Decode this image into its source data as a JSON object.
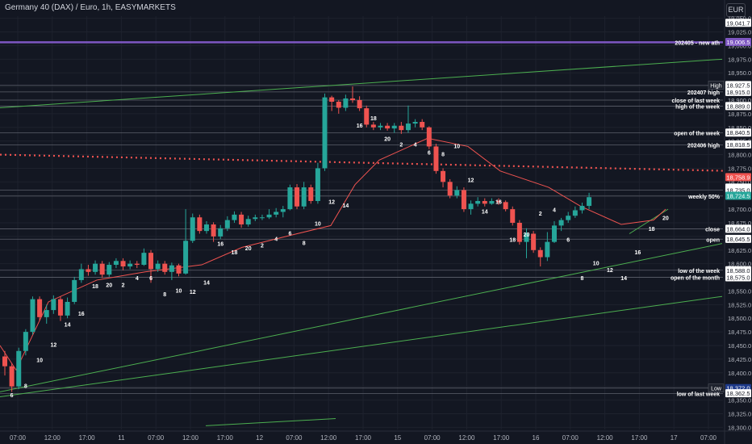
{
  "header": {
    "title": "Germany 40 (DAX) / Euro, 1h, EASYMARKETS",
    "currency": "EUR"
  },
  "colors": {
    "background": "#131722",
    "up": "#26a69a",
    "down": "#ef5350",
    "purple": "#7e57c2",
    "trend": "#4caf50",
    "ma": "#ef5350",
    "levelLine": "#5d606b"
  },
  "chart_data": {
    "type": "candlestick",
    "title": "Germany 40 (DAX) / Euro, 1h, EASYMARKETS",
    "ylim": [
      18287,
      19060
    ],
    "y_ticks": [
      18300,
      18325,
      18350,
      18375,
      18400,
      18425,
      18450,
      18475,
      18500,
      18525,
      18550,
      18575,
      18600,
      18625,
      18650,
      18675,
      18700,
      18725,
      18750,
      18775,
      18800,
      18825,
      18850,
      18875,
      18900,
      18925,
      18950,
      18975,
      19000,
      19025,
      19050
    ],
    "x_ticks": [
      "07:00",
      "12:00",
      "17:00",
      "11",
      "07:00",
      "12:00",
      "17:00",
      "12",
      "07:00",
      "12:00",
      "17:00",
      "15",
      "07:00",
      "12:00",
      "17:00",
      "16",
      "07:00",
      "12:00",
      "17:00",
      "17",
      "07:00"
    ],
    "candles": [
      [
        18430,
        18412,
        18440,
        18395
      ],
      [
        18412,
        18375,
        18418,
        18365
      ],
      [
        18375,
        18440,
        18446,
        18370
      ],
      [
        18440,
        18475,
        18480,
        18432
      ],
      [
        18475,
        18535,
        18540,
        18470
      ],
      [
        18535,
        18502,
        18540,
        18495
      ],
      [
        18502,
        18515,
        18525,
        18490
      ],
      [
        18515,
        18535,
        18542,
        18508
      ],
      [
        18535,
        18505,
        18540,
        18495
      ],
      [
        18505,
        18530,
        18538,
        18500
      ],
      [
        18530,
        18570,
        18576,
        18526
      ],
      [
        18570,
        18590,
        18600,
        18565
      ],
      [
        18590,
        18585,
        18598,
        18578
      ],
      [
        18585,
        18600,
        18606,
        18580
      ],
      [
        18600,
        18580,
        18605,
        18574
      ],
      [
        18580,
        18598,
        18603,
        18576
      ],
      [
        18598,
        18605,
        18610,
        18592
      ],
      [
        18605,
        18595,
        18610,
        18588
      ],
      [
        18595,
        18600,
        18606,
        18590
      ],
      [
        18600,
        18598,
        18605,
        18592
      ],
      [
        18598,
        18620,
        18628,
        18596
      ],
      [
        18620,
        18590,
        18625,
        18565
      ],
      [
        18590,
        18600,
        18606,
        18585
      ],
      [
        18600,
        18585,
        18605,
        18580
      ],
      [
        18585,
        18597,
        18602,
        18570
      ],
      [
        18597,
        18582,
        18600,
        18577
      ],
      [
        18582,
        18642,
        18700,
        18580
      ],
      [
        18642,
        18685,
        18692,
        18638
      ],
      [
        18685,
        18660,
        18690,
        18655
      ],
      [
        18660,
        18672,
        18678,
        18655
      ],
      [
        18672,
        18650,
        18676,
        18640
      ],
      [
        18650,
        18665,
        18671,
        18645
      ],
      [
        18665,
        18680,
        18687,
        18660
      ],
      [
        18680,
        18690,
        18696,
        18675
      ],
      [
        18690,
        18672,
        18695,
        18666
      ],
      [
        18672,
        18682,
        18688,
        18668
      ],
      [
        18682,
        18685,
        18690,
        18678
      ],
      [
        18685,
        18685,
        18690,
        18680
      ],
      [
        18685,
        18690,
        18700,
        18682
      ],
      [
        18690,
        18695,
        18702,
        18685
      ],
      [
        18695,
        18700,
        18706,
        18685
      ],
      [
        18700,
        18740,
        18745,
        18698
      ],
      [
        18740,
        18705,
        18746,
        18700
      ],
      [
        18705,
        18740,
        18750,
        18700
      ],
      [
        18740,
        18715,
        18745,
        18710
      ],
      [
        18715,
        18775,
        18785,
        18710
      ],
      [
        18775,
        18905,
        18912,
        18770
      ],
      [
        18905,
        18897,
        18908,
        18880
      ],
      [
        18897,
        18886,
        18900,
        18875
      ],
      [
        18886,
        18903,
        18910,
        18880
      ],
      [
        18903,
        18900,
        18925,
        18895
      ],
      [
        18900,
        18885,
        18907,
        18880
      ],
      [
        18885,
        18855,
        18890,
        18850
      ],
      [
        18855,
        18850,
        18860,
        18845
      ],
      [
        18850,
        18853,
        18858,
        18845
      ],
      [
        18853,
        18848,
        18858,
        18844
      ],
      [
        18848,
        18853,
        18858,
        18840
      ],
      [
        18853,
        18845,
        18860,
        18838
      ],
      [
        18845,
        18857,
        18890,
        18840
      ],
      [
        18857,
        18860,
        18865,
        18850
      ],
      [
        18860,
        18850,
        18865,
        18845
      ],
      [
        18850,
        18815,
        18852,
        18810
      ],
      [
        18815,
        18770,
        18820,
        18765
      ],
      [
        18770,
        18750,
        18775,
        18740
      ],
      [
        18750,
        18725,
        18755,
        18720
      ],
      [
        18725,
        18735,
        18742,
        18720
      ],
      [
        18735,
        18700,
        18740,
        18695
      ],
      [
        18700,
        18710,
        18716,
        18690
      ],
      [
        18710,
        18715,
        18722,
        18705
      ],
      [
        18715,
        18710,
        18720,
        18705
      ],
      [
        18710,
        18715,
        18720,
        18708
      ],
      [
        18715,
        18713,
        18720,
        18708
      ],
      [
        18713,
        18700,
        18716,
        18696
      ],
      [
        18700,
        18675,
        18705,
        18670
      ],
      [
        18675,
        18640,
        18680,
        18635
      ],
      [
        18640,
        18655,
        18665,
        18610
      ],
      [
        18655,
        18625,
        18660,
        18620
      ],
      [
        18625,
        18612,
        18630,
        18595
      ],
      [
        18612,
        18640,
        18658,
        18605
      ],
      [
        18640,
        18670,
        18678,
        18638
      ],
      [
        18670,
        18680,
        18684,
        18660
      ],
      [
        18680,
        18688,
        18695,
        18675
      ],
      [
        18688,
        18698,
        18705,
        18684
      ],
      [
        18698,
        18706,
        18712,
        18692
      ],
      [
        18706,
        18722,
        18730,
        18700
      ]
    ],
    "moving_average": [
      [
        0,
        18450
      ],
      [
        20,
        18405
      ],
      [
        60,
        18530
      ],
      [
        120,
        18570
      ],
      [
        180,
        18585
      ],
      [
        250,
        18598
      ],
      [
        300,
        18630
      ],
      [
        360,
        18652
      ],
      [
        410,
        18670
      ],
      [
        440,
        18745
      ],
      [
        470,
        18790
      ],
      [
        530,
        18830
      ],
      [
        580,
        18815
      ],
      [
        620,
        18770
      ],
      [
        680,
        18740
      ],
      [
        720,
        18705
      ],
      [
        770,
        18672
      ],
      [
        810,
        18680
      ],
      [
        825,
        18700
      ]
    ],
    "horizontal_levels": [
      {
        "price": 19006,
        "label": "202405 - new ath",
        "price_label": "19,006.5",
        "color": "#7e57c2",
        "width": 2.5
      },
      {
        "price": 18927,
        "label": "",
        "price_label": "18,927.5",
        "color": "#5d606b",
        "width": 0.8
      },
      {
        "price": 18915,
        "label": "202407 high",
        "price_label": "18,915.0",
        "color": "#5d606b",
        "width": 0.8
      },
      {
        "price": 18900,
        "label": "close of last week",
        "price_label": "",
        "color": "#5d606b",
        "width": 0.8
      },
      {
        "price": 18889,
        "label": "high of the week",
        "price_label": "18,889.0",
        "color": "#5d606b",
        "width": 0.8
      },
      {
        "price": 18840,
        "label": "open of the week",
        "price_label": "18,840.5",
        "color": "#5d606b",
        "width": 0.8
      },
      {
        "price": 18818,
        "label": "202406 high",
        "price_label": "18,818.5",
        "color": "#5d606b",
        "width": 0.8
      },
      {
        "price": 18735,
        "label": "",
        "price_label": "18,735.0",
        "color": "#5d606b",
        "width": 0.8
      },
      {
        "price": 18724,
        "label": "weekly 50%",
        "price_label": "",
        "color": "#5d606b",
        "width": 0.8
      },
      {
        "price": 18664,
        "label": "close",
        "price_label": "18,664.0",
        "color": "#5d606b",
        "width": 0.8
      },
      {
        "price": 18645,
        "label": "open",
        "price_label": "18,645.5",
        "color": "#5d606b",
        "width": 0.8
      },
      {
        "price": 18588,
        "label": "low of the week",
        "price_label": "18,588.0",
        "color": "#5d606b",
        "width": 0.8
      },
      {
        "price": 18575,
        "label": "open of the month",
        "price_label": "18,575.0",
        "color": "#5d606b",
        "width": 0.8
      },
      {
        "price": 18372,
        "label": "",
        "price_label": "18,372.0",
        "color": "#5d606b",
        "width": 0.8
      },
      {
        "price": 18362,
        "label": "low of last week",
        "price_label": "18,362.5",
        "color": "#5d606b",
        "width": 0.8
      }
    ],
    "dotted_level": {
      "price": 18800,
      "color": "#ef5350"
    },
    "price_badges": [
      {
        "text": "19,041.7",
        "price": 19041.7,
        "bg": "#ffffff",
        "fg": "#131722"
      },
      {
        "text": "19,006.5",
        "price": 19006.5,
        "bg": "#7e57c2",
        "fg": "#ffffff"
      },
      {
        "text": "18,927.5",
        "price": 18927.5,
        "bg": "#ffffff",
        "fg": "#131722",
        "tag": "High"
      },
      {
        "text": "18,915.0",
        "price": 18915.0,
        "bg": "#ffffff",
        "fg": "#131722"
      },
      {
        "text": "18,889.0",
        "price": 18889.0,
        "bg": "#ffffff",
        "fg": "#131722"
      },
      {
        "text": "18,840.5",
        "price": 18840.5,
        "bg": "#ffffff",
        "fg": "#131722"
      },
      {
        "text": "18,818.5",
        "price": 18818.5,
        "bg": "#ffffff",
        "fg": "#131722"
      },
      {
        "text": "18,739.5",
        "price": 18739.5,
        "bg": "#ffffff",
        "fg": "#131722"
      },
      {
        "text": "18,758.9",
        "price": 18758.9,
        "bg": "#ef5350",
        "fg": "#ffffff"
      },
      {
        "text": "18,735.0",
        "price": 18735.0,
        "bg": "#ffffff",
        "fg": "#131722"
      },
      {
        "text": "18,724.5",
        "price": 18724.5,
        "bg": "#26a69a",
        "fg": "#ffffff"
      },
      {
        "text": "18,664.0",
        "price": 18664.0,
        "bg": "#ffffff",
        "fg": "#131722"
      },
      {
        "text": "18,645.5",
        "price": 18645.5,
        "bg": "#ffffff",
        "fg": "#131722"
      },
      {
        "text": "18,588.0",
        "price": 18588.0,
        "bg": "#ffffff",
        "fg": "#131722"
      },
      {
        "text": "18,575.0",
        "price": 18575.0,
        "bg": "#ffffff",
        "fg": "#131722"
      },
      {
        "text": "18,372.0",
        "price": 18372.0,
        "bg": "#1e3a8a",
        "fg": "#ffffff",
        "tag": "Low"
      },
      {
        "text": "18,362.5",
        "price": 18362.5,
        "bg": "#ffffff",
        "fg": "#131722"
      }
    ],
    "trendlines": [
      {
        "from": [
          0,
          18886
        ],
        "to": [
          895,
          18975
        ]
      },
      {
        "from": [
          0,
          18365
        ],
        "to": [
          895,
          18637
        ]
      },
      {
        "from": [
          0,
          18356
        ],
        "to": [
          895,
          18540
        ]
      },
      {
        "from": [
          255,
          18303
        ],
        "to": [
          416,
          18316
        ]
      },
      {
        "from": [
          780,
          18655
        ],
        "to": [
          828,
          18700
        ]
      }
    ],
    "hour_labels": [
      {
        "text": "6",
        "candle": 1,
        "price": 18355
      },
      {
        "text": "8",
        "candle": 3,
        "price": 18372
      },
      {
        "text": "10",
        "candle": 5,
        "price": 18420
      },
      {
        "text": "12",
        "candle": 7,
        "price": 18448
      },
      {
        "text": "14",
        "candle": 9,
        "price": 18485
      },
      {
        "text": "16",
        "candle": 11,
        "price": 18505
      },
      {
        "text": "18",
        "candle": 13,
        "price": 18555
      },
      {
        "text": "20",
        "candle": 15,
        "price": 18557
      },
      {
        "text": "2",
        "candle": 17,
        "price": 18557
      },
      {
        "text": "4",
        "candle": 19,
        "price": 18570
      },
      {
        "text": "6",
        "candle": 21,
        "price": 18570
      },
      {
        "text": "8",
        "candle": 23,
        "price": 18540
      },
      {
        "text": "10",
        "candle": 25,
        "price": 18547
      },
      {
        "text": "12",
        "candle": 27,
        "price": 18545
      },
      {
        "text": "14",
        "candle": 29,
        "price": 18562
      },
      {
        "text": "16",
        "candle": 31,
        "price": 18633
      },
      {
        "text": "18",
        "candle": 33,
        "price": 18617
      },
      {
        "text": "20",
        "candle": 35,
        "price": 18625
      },
      {
        "text": "2",
        "candle": 37,
        "price": 18630
      },
      {
        "text": "4",
        "candle": 39,
        "price": 18642
      },
      {
        "text": "6",
        "candle": 41,
        "price": 18652
      },
      {
        "text": "8",
        "candle": 43,
        "price": 18634
      },
      {
        "text": "10",
        "candle": 45,
        "price": 18670
      },
      {
        "text": "12",
        "candle": 47,
        "price": 18710
      },
      {
        "text": "14",
        "candle": 49,
        "price": 18703
      },
      {
        "text": "16",
        "candle": 51,
        "price": 18850
      },
      {
        "text": "18",
        "candle": 53,
        "price": 18863
      },
      {
        "text": "20",
        "candle": 55,
        "price": 18825
      },
      {
        "text": "2",
        "candle": 57,
        "price": 18815
      },
      {
        "text": "4",
        "candle": 59,
        "price": 18815
      },
      {
        "text": "6",
        "candle": 61,
        "price": 18800
      },
      {
        "text": "8",
        "candle": 63,
        "price": 18797
      },
      {
        "text": "10",
        "candle": 65,
        "price": 18812
      },
      {
        "text": "12",
        "candle": 67,
        "price": 18750
      },
      {
        "text": "14",
        "candle": 69,
        "price": 18692
      },
      {
        "text": "16",
        "candle": 71,
        "price": 18710
      },
      {
        "text": "18",
        "candle": 73,
        "price": 18640
      },
      {
        "text": "20",
        "candle": 75,
        "price": 18650
      },
      {
        "text": "2",
        "candle": 77,
        "price": 18688
      },
      {
        "text": "4",
        "candle": 79,
        "price": 18695
      },
      {
        "text": "6",
        "candle": 81,
        "price": 18640
      },
      {
        "text": "8",
        "candle": 83,
        "price": 18570
      },
      {
        "text": "10",
        "candle": 85,
        "price": 18597
      },
      {
        "text": "12",
        "candle": 87,
        "price": 18585
      },
      {
        "text": "14",
        "candle": 89,
        "price": 18570
      },
      {
        "text": "16",
        "candle": 91,
        "price": 18617
      },
      {
        "text": "18",
        "candle": 93,
        "price": 18660
      },
      {
        "text": "20",
        "candle": 95,
        "price": 18680
      }
    ]
  }
}
